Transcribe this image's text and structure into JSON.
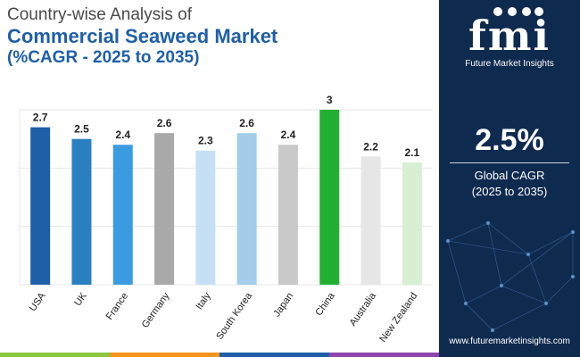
{
  "header": {
    "line1": "Country-wise Analysis of",
    "line2": "Commercial Seaweed Market",
    "line3": "(%CAGR - 2025 to 2035)"
  },
  "chart_data": {
    "type": "bar",
    "title": "Country-wise Analysis of Commercial Seaweed Market (%CAGR - 2025 to 2035)",
    "xlabel": "",
    "ylabel": "",
    "ylim": [
      0,
      3
    ],
    "grid": true,
    "categories": [
      "USA",
      "UK",
      "France",
      "Germany",
      "Italy",
      "South Korea",
      "Japan",
      "China",
      "Australia",
      "New Zealand"
    ],
    "values": [
      2.7,
      2.5,
      2.4,
      2.6,
      2.3,
      2.6,
      2.4,
      3,
      2.2,
      2.1
    ],
    "colors": [
      "#1f5fa8",
      "#2a7fc0",
      "#3a9be0",
      "#a9a9a9",
      "#c5e0f4",
      "#a3cde9",
      "#c9c9c9",
      "#22b033",
      "#e6e6e6",
      "#d7efd2"
    ]
  },
  "logo": {
    "text": "fmi",
    "subtitle": "Future Market Insights"
  },
  "summary": {
    "cagr": "2.5%",
    "label_line1": "Global CAGR",
    "label_line2": "(2025 to 2035)"
  },
  "footer": {
    "url": "www.futuremarketinsights.com"
  },
  "bottom_bar_colors": [
    "#8cc63f",
    "#f7941d",
    "#1f5fa8",
    "#8e44ad"
  ]
}
